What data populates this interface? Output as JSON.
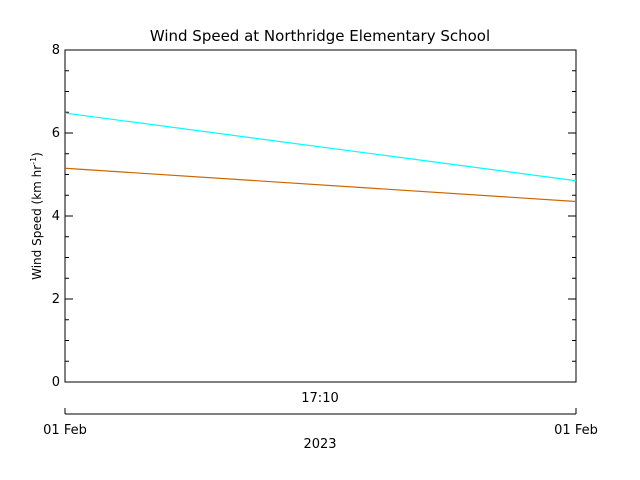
{
  "chart_data": {
    "type": "line",
    "title": "Wind Speed at Northridge Elementary School",
    "ylabel": {
      "main": "Wind Speed (km hr",
      "superscript": "-1",
      "close": ")"
    },
    "ylim": [
      0,
      8
    ],
    "yticks": [
      0,
      2,
      4,
      6,
      8
    ],
    "ytick_labels": [
      "0",
      "2",
      "4",
      "6",
      "8"
    ],
    "x_time_label": "17:10",
    "x_start_label": "01 Feb",
    "x_end_label": "01 Feb",
    "x_year_label": "2023",
    "grid": false,
    "series": [
      {
        "color": "#00ffff",
        "start": 6.48,
        "end": 4.85
      },
      {
        "color": "#cc6600",
        "start": 5.15,
        "end": 4.35
      }
    ]
  }
}
